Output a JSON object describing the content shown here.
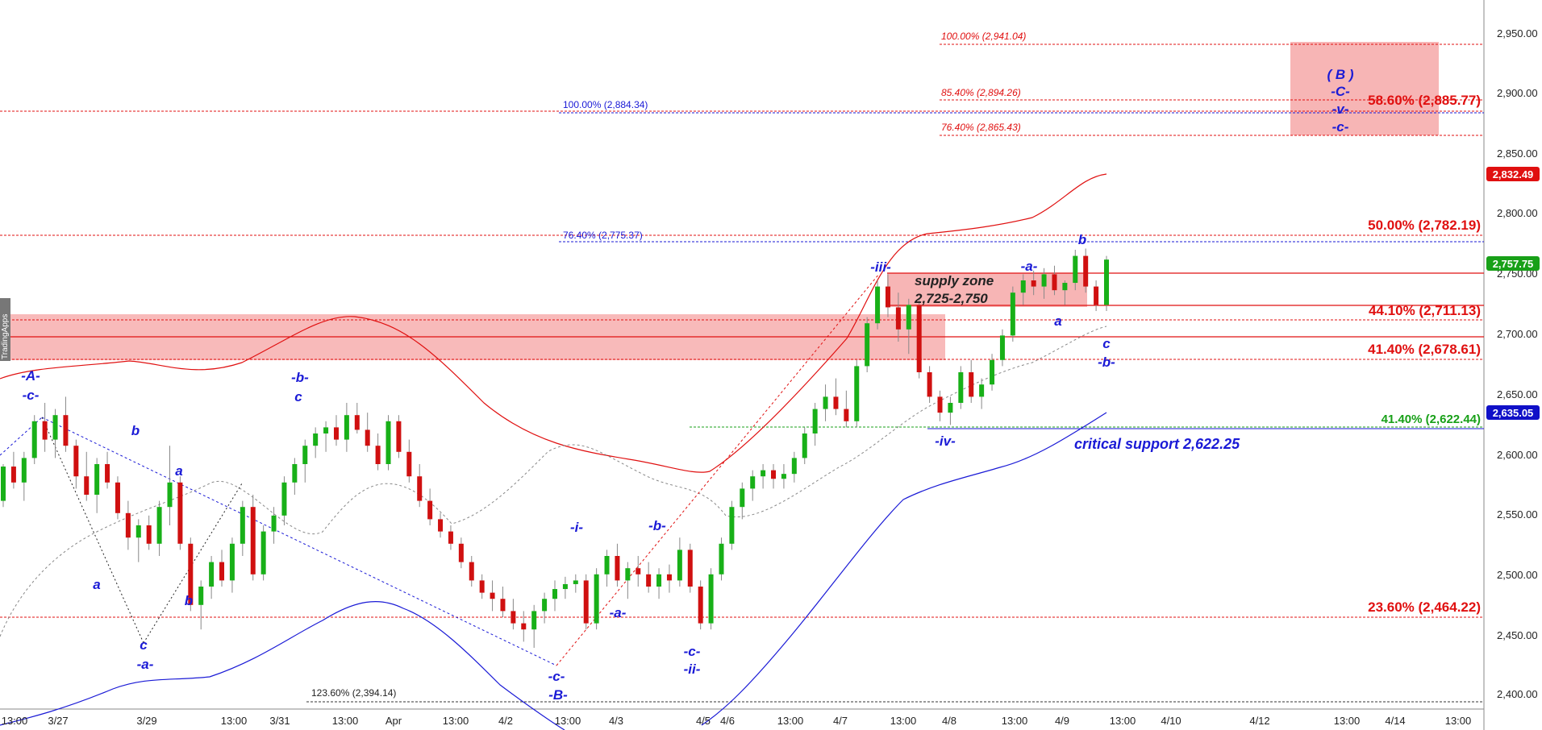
{
  "chart_data": {
    "type": "candlestick",
    "y_axis": {
      "range": [
        2390,
        2965
      ],
      "ticks": [
        "2,950.00",
        "2,900.00",
        "2,850.00",
        "2,800.00",
        "2,750.00",
        "2,700.00",
        "2,650.00",
        "2,600.00",
        "2,550.00",
        "2,500.00",
        "2,450.00",
        "2,400.00"
      ],
      "price_badges": [
        {
          "text": "2,832.49",
          "value": 2832.49,
          "color": "#e01010"
        },
        {
          "text": "2,757.75",
          "value": 2757.75,
          "color": "#18a018"
        },
        {
          "text": "2,635.05",
          "value": 2635.05,
          "color": "#1010c8"
        }
      ]
    },
    "x_axis": {
      "ticks": [
        "13:00",
        "3/27",
        "3/29",
        "13:00",
        "3/31",
        "13:00",
        "Apr",
        "13:00",
        "4/2",
        "13:00",
        "4/3",
        "4/5",
        "4/6",
        "13:00",
        "4/7",
        "13:00",
        "4/8",
        "13:00",
        "4/9",
        "13:00",
        "4/10",
        "4/12",
        "13:00",
        "4/14",
        "13:00"
      ]
    },
    "side_label": "TradingApps",
    "fib_levels": [
      {
        "text": "100.00% (2,941.04)",
        "value": 2941.04,
        "style": "small-red"
      },
      {
        "text": "85.40% (2,894.26)",
        "value": 2894.26,
        "style": "small-red"
      },
      {
        "text": "100.00% (2,884.34)",
        "value": 2884.34,
        "style": "small-blue"
      },
      {
        "text": "58.60% (2,885.77)",
        "value": 2885.77,
        "style": "big-red"
      },
      {
        "text": "76.40% (2,865.43)",
        "value": 2865.43,
        "style": "small-red"
      },
      {
        "text": "50.00% (2,782.19)",
        "value": 2782.19,
        "style": "big-red"
      },
      {
        "text": "76.40% (2,775.37)",
        "value": 2775.37,
        "style": "small-blue"
      },
      {
        "text": "44.10% (2,711.13)",
        "value": 2711.13,
        "style": "big-red"
      },
      {
        "text": "41.40% (2,678.61)",
        "value": 2678.61,
        "style": "big-red"
      },
      {
        "text": "41.40% (2,622.44)",
        "value": 2622.44,
        "style": "big-green"
      },
      {
        "text": "23.60% (2,464.22)",
        "value": 2464.22,
        "style": "big-red"
      },
      {
        "text": "123.60% (2,394.14)",
        "value": 2394.14,
        "style": "small-black"
      }
    ],
    "zones": [
      {
        "label_line1": "supply zone",
        "label_line2": "2,725-2,750",
        "top": 2750,
        "bottom": 2725
      },
      {
        "label_line1": "",
        "label_line2": "",
        "top": 2717,
        "bottom": 2678
      },
      {
        "label_line1": "",
        "label_line2": "",
        "top": 2945,
        "bottom": 2865
      }
    ],
    "support_text": "critical support 2,622.25",
    "wave_labels": [
      "-A-",
      "-c-",
      "b",
      "a",
      "c",
      "-a-",
      "b",
      "a",
      "-b-",
      "c",
      "-i-",
      "-a-",
      "-c-",
      "-B-",
      "-b-",
      "-c-",
      "-ii-",
      "-iii-",
      "-iv-",
      "-a-",
      "a",
      "b",
      "c",
      "-b-",
      "( B )",
      "-C-",
      "-v-",
      "-c-"
    ],
    "candles": [
      [
        2560,
        2590,
        2555,
        2588
      ],
      [
        2588,
        2600,
        2570,
        2575
      ],
      [
        2575,
        2600,
        2560,
        2595
      ],
      [
        2595,
        2630,
        2590,
        2625
      ],
      [
        2625,
        2640,
        2600,
        2610
      ],
      [
        2610,
        2635,
        2595,
        2630
      ],
      [
        2630,
        2645,
        2600,
        2605
      ],
      [
        2605,
        2610,
        2570,
        2580
      ],
      [
        2580,
        2600,
        2560,
        2565
      ],
      [
        2565,
        2595,
        2550,
        2590
      ],
      [
        2590,
        2600,
        2570,
        2575
      ],
      [
        2575,
        2580,
        2545,
        2550
      ],
      [
        2550,
        2560,
        2520,
        2530
      ],
      [
        2530,
        2545,
        2510,
        2540
      ],
      [
        2540,
        2548,
        2520,
        2525
      ],
      [
        2525,
        2560,
        2515,
        2555
      ],
      [
        2555,
        2605,
        2540,
        2575
      ],
      [
        2575,
        2580,
        2520,
        2525
      ],
      [
        2525,
        2530,
        2470,
        2475
      ],
      [
        2475,
        2495,
        2455,
        2490
      ],
      [
        2490,
        2515,
        2480,
        2510
      ],
      [
        2510,
        2520,
        2490,
        2495
      ],
      [
        2495,
        2530,
        2485,
        2525
      ],
      [
        2525,
        2560,
        2515,
        2555
      ],
      [
        2555,
        2565,
        2495,
        2500
      ],
      [
        2500,
        2540,
        2495,
        2535
      ],
      [
        2535,
        2555,
        2525,
        2548
      ],
      [
        2548,
        2580,
        2540,
        2575
      ],
      [
        2575,
        2595,
        2565,
        2590
      ],
      [
        2590,
        2610,
        2575,
        2605
      ],
      [
        2605,
        2620,
        2595,
        2615
      ],
      [
        2615,
        2625,
        2600,
        2620
      ],
      [
        2620,
        2630,
        2605,
        2610
      ],
      [
        2610,
        2640,
        2600,
        2630
      ],
      [
        2630,
        2640,
        2615,
        2618
      ],
      [
        2618,
        2632,
        2600,
        2605
      ],
      [
        2605,
        2615,
        2585,
        2590
      ],
      [
        2590,
        2630,
        2585,
        2625
      ],
      [
        2625,
        2630,
        2595,
        2600
      ],
      [
        2600,
        2610,
        2575,
        2580
      ],
      [
        2580,
        2590,
        2555,
        2560
      ],
      [
        2560,
        2570,
        2540,
        2545
      ],
      [
        2545,
        2550,
        2530,
        2535
      ],
      [
        2535,
        2540,
        2520,
        2525
      ],
      [
        2525,
        2530,
        2505,
        2510
      ],
      [
        2510,
        2515,
        2490,
        2495
      ],
      [
        2495,
        2500,
        2480,
        2485
      ],
      [
        2485,
        2495,
        2470,
        2480
      ],
      [
        2480,
        2490,
        2465,
        2470
      ],
      [
        2470,
        2480,
        2455,
        2460
      ],
      [
        2460,
        2470,
        2445,
        2455
      ],
      [
        2455,
        2475,
        2440,
        2470
      ],
      [
        2470,
        2485,
        2460,
        2480
      ],
      [
        2480,
        2495,
        2470,
        2488
      ],
      [
        2488,
        2498,
        2480,
        2492
      ],
      [
        2492,
        2500,
        2485,
        2495
      ],
      [
        2495,
        2500,
        2455,
        2460
      ],
      [
        2460,
        2505,
        2455,
        2500
      ],
      [
        2500,
        2520,
        2490,
        2515
      ],
      [
        2515,
        2525,
        2490,
        2495
      ],
      [
        2495,
        2510,
        2480,
        2505
      ],
      [
        2505,
        2515,
        2490,
        2500
      ],
      [
        2500,
        2510,
        2485,
        2490
      ],
      [
        2490,
        2505,
        2480,
        2500
      ],
      [
        2500,
        2508,
        2485,
        2495
      ],
      [
        2495,
        2530,
        2490,
        2520
      ],
      [
        2520,
        2525,
        2485,
        2490
      ],
      [
        2490,
        2495,
        2455,
        2460
      ],
      [
        2460,
        2505,
        2455,
        2500
      ],
      [
        2500,
        2530,
        2495,
        2525
      ],
      [
        2525,
        2560,
        2520,
        2555
      ],
      [
        2555,
        2575,
        2545,
        2570
      ],
      [
        2570,
        2585,
        2560,
        2580
      ],
      [
        2580,
        2590,
        2570,
        2585
      ],
      [
        2585,
        2590,
        2570,
        2578
      ],
      [
        2578,
        2590,
        2570,
        2582
      ],
      [
        2582,
        2600,
        2575,
        2595
      ],
      [
        2595,
        2620,
        2590,
        2615
      ],
      [
        2615,
        2640,
        2605,
        2635
      ],
      [
        2635,
        2655,
        2625,
        2645
      ],
      [
        2645,
        2660,
        2630,
        2635
      ],
      [
        2635,
        2650,
        2620,
        2625
      ],
      [
        2625,
        2675,
        2620,
        2670
      ],
      [
        2670,
        2710,
        2665,
        2705
      ],
      [
        2705,
        2740,
        2700,
        2735
      ],
      [
        2735,
        2745,
        2710,
        2718
      ],
      [
        2718,
        2730,
        2690,
        2700
      ],
      [
        2700,
        2725,
        2680,
        2720
      ],
      [
        2720,
        2725,
        2660,
        2665
      ],
      [
        2665,
        2670,
        2640,
        2645
      ],
      [
        2645,
        2650,
        2625,
        2632
      ],
      [
        2632,
        2645,
        2622,
        2640
      ],
      [
        2640,
        2670,
        2635,
        2665
      ],
      [
        2665,
        2675,
        2640,
        2645
      ],
      [
        2645,
        2660,
        2635,
        2655
      ],
      [
        2655,
        2680,
        2650,
        2675
      ],
      [
        2675,
        2700,
        2670,
        2695
      ],
      [
        2695,
        2735,
        2690,
        2730
      ],
      [
        2730,
        2745,
        2720,
        2740
      ],
      [
        2740,
        2748,
        2728,
        2735
      ],
      [
        2735,
        2750,
        2725,
        2745
      ],
      [
        2745,
        2752,
        2728,
        2732
      ],
      [
        2732,
        2740,
        2720,
        2738
      ],
      [
        2738,
        2765,
        2732,
        2760
      ],
      [
        2760,
        2766,
        2730,
        2735
      ],
      [
        2735,
        2740,
        2715,
        2720
      ],
      [
        2720,
        2760,
        2715,
        2757
      ]
    ]
  }
}
